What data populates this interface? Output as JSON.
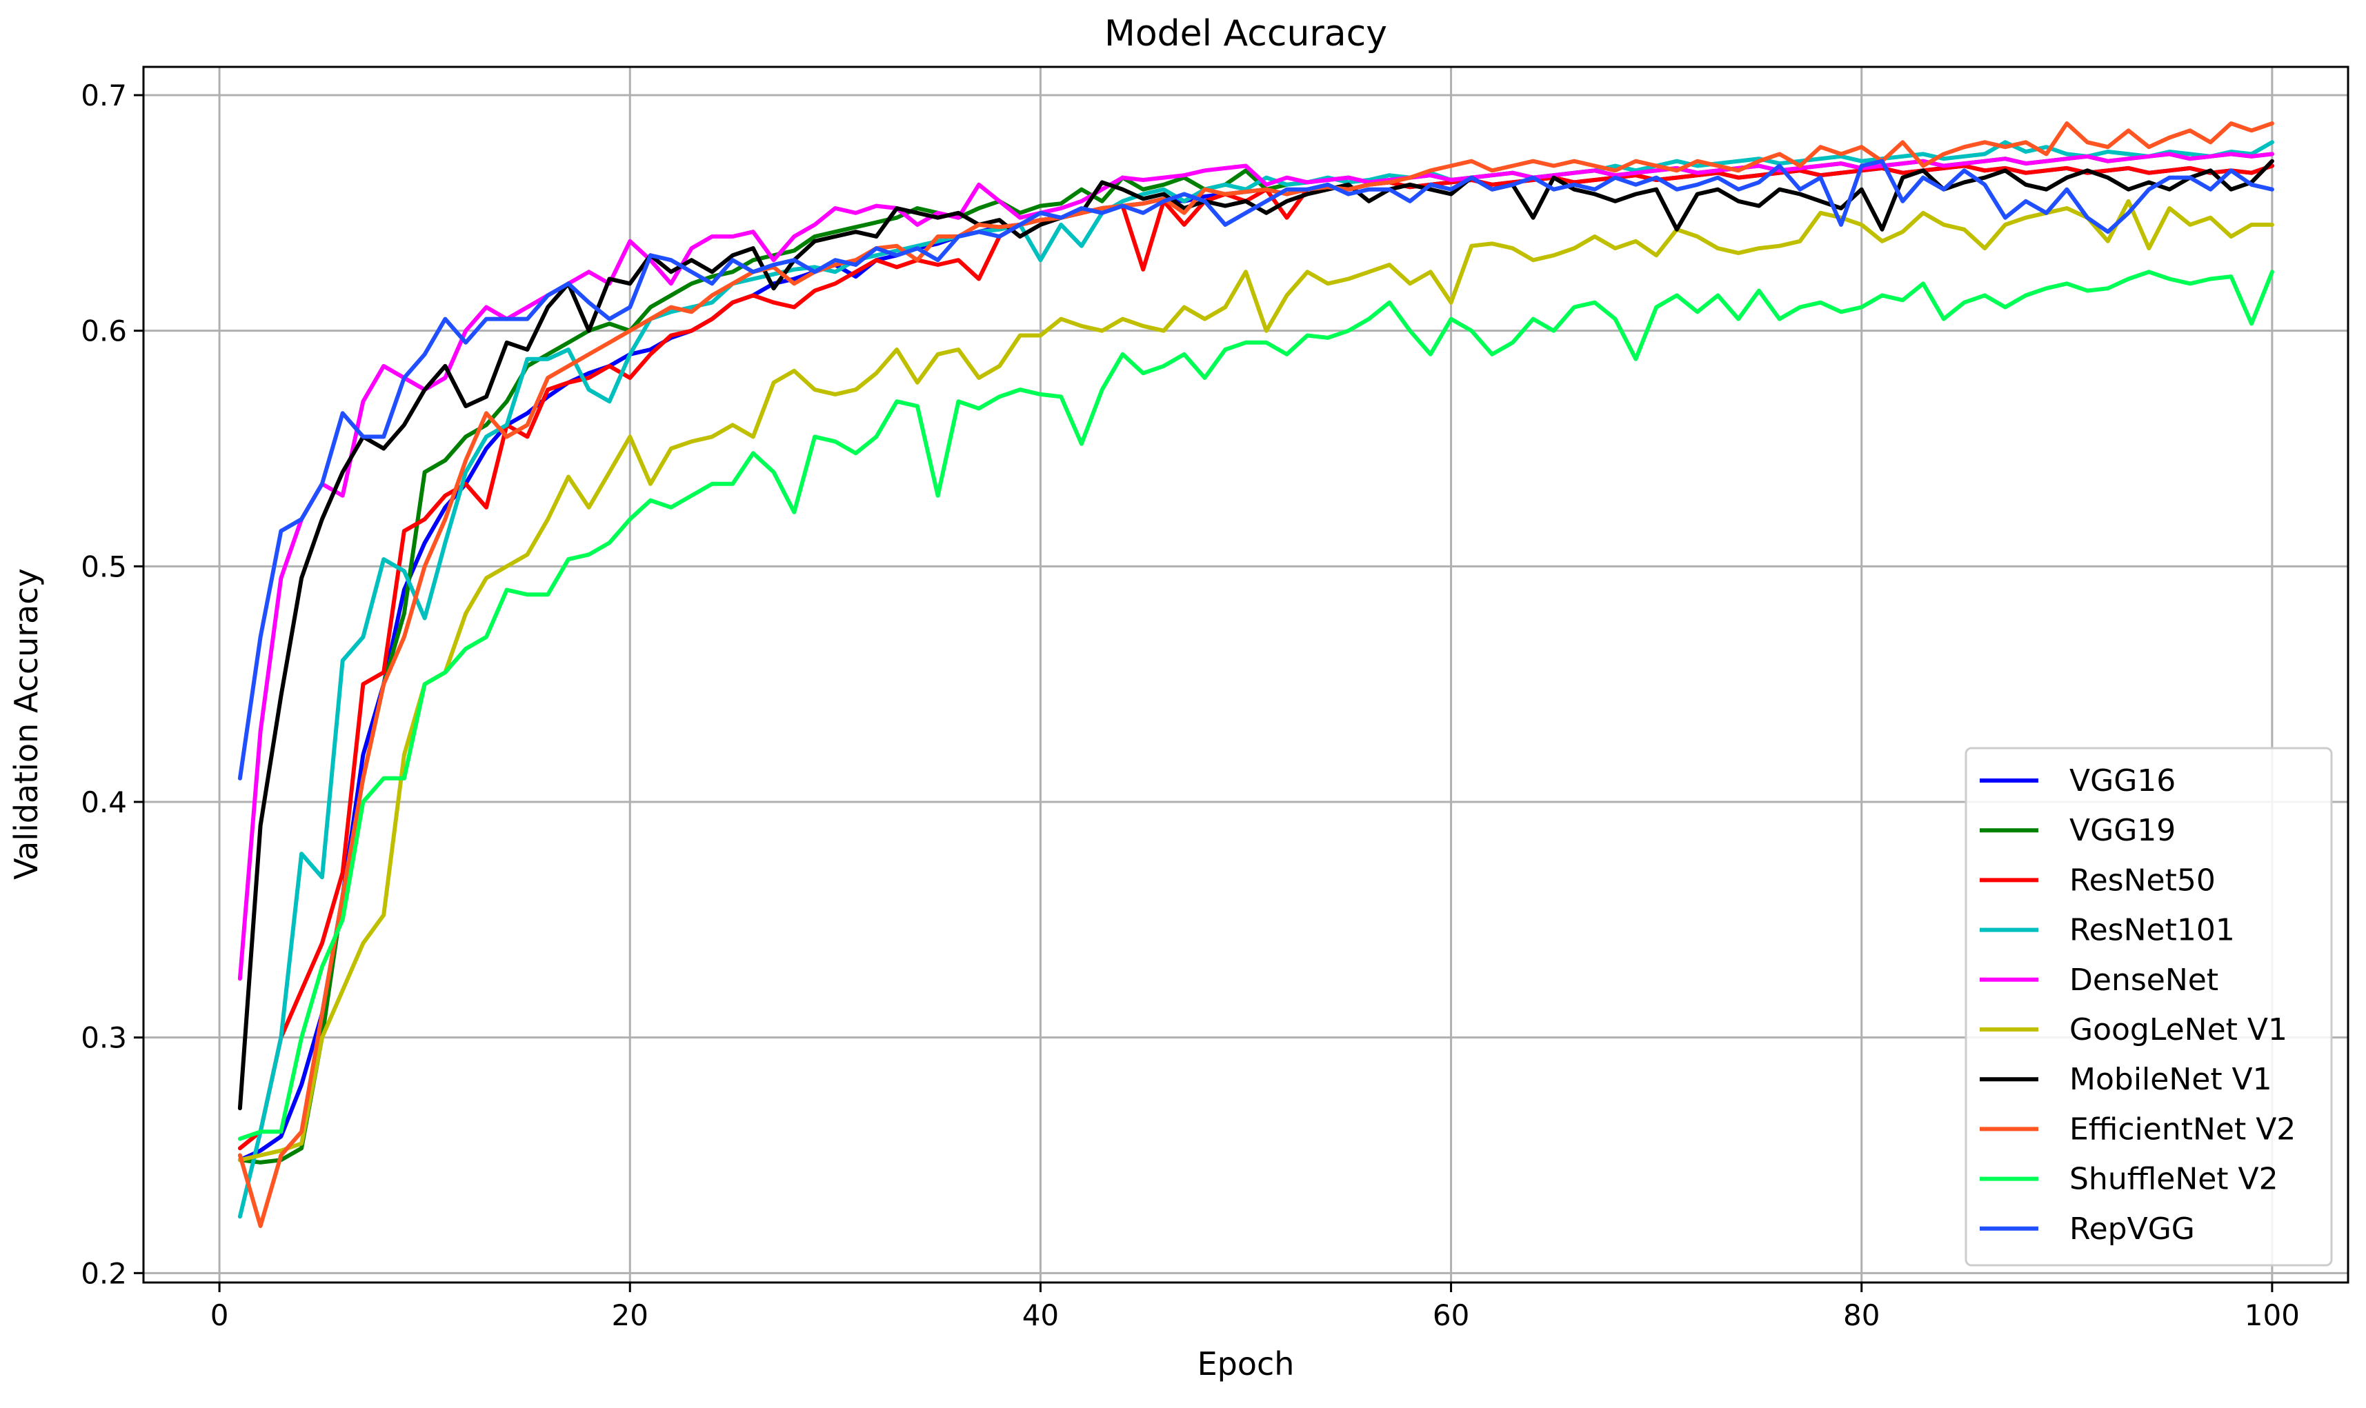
{
  "chart_data": {
    "type": "line",
    "title": "Model Accuracy",
    "xlabel": "Epoch",
    "ylabel": "Validation Accuracy",
    "xlim": [
      -3.7,
      103.7
    ],
    "ylim": [
      0.196,
      0.712
    ],
    "xticks": [
      0,
      20,
      40,
      60,
      80,
      100
    ],
    "yticks": [
      0.2,
      0.3,
      0.4,
      0.5,
      0.6,
      0.7
    ],
    "xtick_labels": [
      "0",
      "20",
      "40",
      "60",
      "80",
      "100"
    ],
    "ytick_labels": [
      "0.2",
      "0.3",
      "0.4",
      "0.5",
      "0.6",
      "0.7"
    ],
    "grid": true,
    "legend_position": "lower-right",
    "x_start": 1,
    "series": [
      {
        "name": "VGG16",
        "color": "#0000ff",
        "values": [
          0.248,
          0.252,
          0.258,
          0.28,
          0.31,
          0.36,
          0.42,
          0.45,
          0.49,
          0.51,
          0.525,
          0.535,
          0.55,
          0.56,
          0.565,
          0.572,
          0.578,
          0.582,
          0.585,
          0.59,
          0.592,
          0.597,
          0.6,
          0.605,
          0.612,
          0.615,
          0.62,
          0.622,
          0.625,
          0.628,
          0.623,
          0.63,
          0.632,
          0.635,
          0.637,
          0.64,
          0.642,
          0.644,
          0.645,
          0.647,
          0.648,
          0.65,
          0.652,
          0.653,
          0.654,
          0.656,
          0.655,
          0.657,
          0.658,
          0.659,
          0.66,
          0.658,
          0.66,
          0.661,
          0.66,
          0.662,
          0.663,
          0.661,
          0.662,
          0.663,
          0.664,
          0.662,
          0.663,
          0.664,
          0.665,
          0.663,
          0.664,
          0.665,
          0.666,
          0.664,
          0.665,
          0.666,
          0.667,
          0.665,
          0.666,
          0.667,
          0.668,
          0.666,
          0.667,
          0.668,
          0.669,
          0.667,
          0.668,
          0.669,
          0.67,
          0.668,
          0.669,
          0.667,
          0.668,
          0.669,
          0.667,
          0.668,
          0.669,
          0.667,
          0.668,
          0.669,
          0.667,
          0.668,
          0.667,
          0.67
        ]
      },
      {
        "name": "VGG19",
        "color": "#008000",
        "values": [
          0.248,
          0.247,
          0.248,
          0.253,
          0.3,
          0.36,
          0.41,
          0.45,
          0.48,
          0.54,
          0.545,
          0.555,
          0.56,
          0.57,
          0.585,
          0.59,
          0.595,
          0.6,
          0.603,
          0.6,
          0.61,
          0.615,
          0.62,
          0.623,
          0.625,
          0.63,
          0.632,
          0.634,
          0.64,
          0.642,
          0.644,
          0.646,
          0.648,
          0.652,
          0.65,
          0.648,
          0.652,
          0.655,
          0.65,
          0.653,
          0.654,
          0.66,
          0.655,
          0.665,
          0.66,
          0.662,
          0.665,
          0.66,
          0.662,
          0.668,
          0.66,
          0.662,
          0.663,
          0.664,
          0.665,
          0.663,
          0.664,
          0.665,
          0.666,
          0.664,
          0.665,
          0.666,
          0.667,
          0.665,
          0.666,
          0.667,
          0.668,
          0.666,
          0.667,
          0.668,
          0.669,
          0.667,
          0.668,
          0.669,
          0.67,
          0.668,
          0.669,
          0.67,
          0.671,
          0.669,
          0.67,
          0.671,
          0.672,
          0.67,
          0.671,
          0.672,
          0.673,
          0.671,
          0.672,
          0.673,
          0.674,
          0.672,
          0.673,
          0.674,
          0.675,
          0.673,
          0.674,
          0.675,
          0.674,
          0.675
        ]
      },
      {
        "name": "ResNet50",
        "color": "#ff0000",
        "values": [
          0.253,
          0.26,
          0.3,
          0.32,
          0.34,
          0.37,
          0.45,
          0.455,
          0.515,
          0.52,
          0.53,
          0.535,
          0.525,
          0.56,
          0.555,
          0.575,
          0.578,
          0.58,
          0.585,
          0.58,
          0.59,
          0.598,
          0.6,
          0.605,
          0.612,
          0.615,
          0.612,
          0.61,
          0.617,
          0.62,
          0.625,
          0.63,
          0.627,
          0.63,
          0.628,
          0.63,
          0.622,
          0.64,
          0.645,
          0.647,
          0.648,
          0.65,
          0.652,
          0.653,
          0.626,
          0.655,
          0.645,
          0.655,
          0.658,
          0.655,
          0.66,
          0.648,
          0.66,
          0.661,
          0.66,
          0.662,
          0.663,
          0.661,
          0.662,
          0.663,
          0.664,
          0.662,
          0.663,
          0.664,
          0.665,
          0.663,
          0.664,
          0.665,
          0.666,
          0.664,
          0.665,
          0.666,
          0.667,
          0.665,
          0.666,
          0.667,
          0.668,
          0.666,
          0.667,
          0.668,
          0.669,
          0.667,
          0.668,
          0.669,
          0.67,
          0.668,
          0.669,
          0.667,
          0.668,
          0.669,
          0.667,
          0.668,
          0.669,
          0.667,
          0.668,
          0.669,
          0.667,
          0.668,
          0.667,
          0.67
        ]
      },
      {
        "name": "ResNet101",
        "color": "#00bfbf",
        "values": [
          0.224,
          0.26,
          0.3,
          0.378,
          0.368,
          0.46,
          0.47,
          0.503,
          0.498,
          0.478,
          0.51,
          0.54,
          0.555,
          0.56,
          0.588,
          0.588,
          0.592,
          0.575,
          0.57,
          0.59,
          0.605,
          0.608,
          0.61,
          0.612,
          0.62,
          0.622,
          0.624,
          0.626,
          0.627,
          0.625,
          0.63,
          0.632,
          0.634,
          0.636,
          0.638,
          0.64,
          0.642,
          0.643,
          0.645,
          0.63,
          0.645,
          0.636,
          0.65,
          0.655,
          0.658,
          0.66,
          0.655,
          0.66,
          0.662,
          0.66,
          0.665,
          0.662,
          0.663,
          0.665,
          0.663,
          0.664,
          0.666,
          0.665,
          0.667,
          0.664,
          0.665,
          0.666,
          0.667,
          0.665,
          0.666,
          0.667,
          0.668,
          0.67,
          0.668,
          0.67,
          0.672,
          0.67,
          0.671,
          0.672,
          0.673,
          0.671,
          0.672,
          0.673,
          0.674,
          0.672,
          0.673,
          0.674,
          0.675,
          0.673,
          0.674,
          0.675,
          0.68,
          0.676,
          0.678,
          0.675,
          0.674,
          0.676,
          0.675,
          0.674,
          0.676,
          0.675,
          0.674,
          0.676,
          0.675,
          0.68
        ]
      },
      {
        "name": "DenseNet",
        "color": "#ff00ff",
        "values": [
          0.325,
          0.43,
          0.495,
          0.52,
          0.535,
          0.53,
          0.57,
          0.585,
          0.58,
          0.575,
          0.58,
          0.6,
          0.61,
          0.605,
          0.61,
          0.615,
          0.62,
          0.625,
          0.62,
          0.638,
          0.63,
          0.62,
          0.635,
          0.64,
          0.64,
          0.642,
          0.63,
          0.64,
          0.645,
          0.652,
          0.65,
          0.653,
          0.652,
          0.645,
          0.65,
          0.648,
          0.662,
          0.655,
          0.648,
          0.65,
          0.652,
          0.655,
          0.66,
          0.665,
          0.664,
          0.665,
          0.666,
          0.668,
          0.669,
          0.67,
          0.662,
          0.665,
          0.663,
          0.664,
          0.665,
          0.663,
          0.664,
          0.665,
          0.666,
          0.664,
          0.665,
          0.666,
          0.667,
          0.665,
          0.666,
          0.667,
          0.668,
          0.666,
          0.667,
          0.668,
          0.669,
          0.667,
          0.668,
          0.669,
          0.67,
          0.668,
          0.669,
          0.67,
          0.671,
          0.669,
          0.67,
          0.671,
          0.672,
          0.67,
          0.671,
          0.672,
          0.673,
          0.671,
          0.672,
          0.673,
          0.674,
          0.672,
          0.673,
          0.674,
          0.675,
          0.673,
          0.674,
          0.675,
          0.674,
          0.675
        ]
      },
      {
        "name": "GoogLeNet V1",
        "color": "#bfbf00",
        "values": [
          0.248,
          0.25,
          0.252,
          0.255,
          0.3,
          0.32,
          0.34,
          0.352,
          0.42,
          0.45,
          0.455,
          0.48,
          0.495,
          0.5,
          0.505,
          0.52,
          0.538,
          0.525,
          0.54,
          0.555,
          0.535,
          0.55,
          0.553,
          0.555,
          0.56,
          0.555,
          0.578,
          0.583,
          0.575,
          0.573,
          0.575,
          0.582,
          0.592,
          0.578,
          0.59,
          0.592,
          0.58,
          0.585,
          0.598,
          0.598,
          0.605,
          0.602,
          0.6,
          0.605,
          0.602,
          0.6,
          0.61,
          0.605,
          0.61,
          0.625,
          0.6,
          0.615,
          0.625,
          0.62,
          0.622,
          0.625,
          0.628,
          0.62,
          0.625,
          0.612,
          0.636,
          0.637,
          0.635,
          0.63,
          0.632,
          0.635,
          0.64,
          0.635,
          0.638,
          0.632,
          0.643,
          0.64,
          0.635,
          0.633,
          0.635,
          0.636,
          0.638,
          0.65,
          0.648,
          0.645,
          0.638,
          0.642,
          0.65,
          0.645,
          0.643,
          0.635,
          0.645,
          0.648,
          0.65,
          0.652,
          0.648,
          0.638,
          0.655,
          0.635,
          0.652,
          0.645,
          0.648,
          0.64,
          0.645,
          0.645
        ]
      },
      {
        "name": "MobileNet V1",
        "color": "#000000",
        "values": [
          0.27,
          0.39,
          0.445,
          0.495,
          0.52,
          0.54,
          0.555,
          0.55,
          0.56,
          0.575,
          0.585,
          0.568,
          0.572,
          0.595,
          0.592,
          0.61,
          0.62,
          0.6,
          0.622,
          0.62,
          0.632,
          0.625,
          0.63,
          0.625,
          0.632,
          0.635,
          0.618,
          0.63,
          0.638,
          0.64,
          0.642,
          0.64,
          0.652,
          0.65,
          0.648,
          0.65,
          0.645,
          0.647,
          0.64,
          0.645,
          0.648,
          0.65,
          0.663,
          0.66,
          0.656,
          0.658,
          0.652,
          0.655,
          0.653,
          0.655,
          0.65,
          0.655,
          0.658,
          0.66,
          0.662,
          0.655,
          0.66,
          0.662,
          0.66,
          0.658,
          0.665,
          0.66,
          0.662,
          0.648,
          0.665,
          0.66,
          0.658,
          0.655,
          0.658,
          0.66,
          0.643,
          0.658,
          0.66,
          0.655,
          0.653,
          0.66,
          0.658,
          0.655,
          0.652,
          0.66,
          0.643,
          0.665,
          0.668,
          0.66,
          0.663,
          0.665,
          0.668,
          0.662,
          0.66,
          0.665,
          0.668,
          0.665,
          0.66,
          0.663,
          0.66,
          0.665,
          0.668,
          0.66,
          0.663,
          0.672
        ]
      },
      {
        "name": "EfficientNet V2",
        "color": "#ff5522",
        "values": [
          0.25,
          0.22,
          0.25,
          0.26,
          0.31,
          0.36,
          0.41,
          0.45,
          0.47,
          0.5,
          0.52,
          0.545,
          0.565,
          0.555,
          0.56,
          0.58,
          0.585,
          0.59,
          0.595,
          0.6,
          0.605,
          0.61,
          0.608,
          0.615,
          0.62,
          0.625,
          0.627,
          0.62,
          0.625,
          0.628,
          0.63,
          0.635,
          0.636,
          0.63,
          0.64,
          0.64,
          0.645,
          0.644,
          0.645,
          0.647,
          0.648,
          0.65,
          0.652,
          0.653,
          0.654,
          0.656,
          0.65,
          0.66,
          0.658,
          0.659,
          0.66,
          0.658,
          0.66,
          0.661,
          0.66,
          0.662,
          0.663,
          0.665,
          0.668,
          0.67,
          0.672,
          0.668,
          0.67,
          0.672,
          0.67,
          0.672,
          0.67,
          0.668,
          0.672,
          0.67,
          0.668,
          0.672,
          0.67,
          0.668,
          0.672,
          0.675,
          0.67,
          0.678,
          0.675,
          0.678,
          0.672,
          0.68,
          0.67,
          0.675,
          0.678,
          0.68,
          0.678,
          0.68,
          0.675,
          0.688,
          0.68,
          0.678,
          0.685,
          0.678,
          0.682,
          0.685,
          0.68,
          0.688,
          0.685,
          0.688
        ]
      },
      {
        "name": "ShuffleNet V2",
        "color": "#00ff55",
        "values": [
          0.257,
          0.26,
          0.26,
          0.3,
          0.33,
          0.35,
          0.4,
          0.41,
          0.41,
          0.45,
          0.455,
          0.465,
          0.47,
          0.49,
          0.488,
          0.488,
          0.503,
          0.505,
          0.51,
          0.52,
          0.528,
          0.525,
          0.53,
          0.535,
          0.535,
          0.548,
          0.54,
          0.523,
          0.555,
          0.553,
          0.548,
          0.555,
          0.57,
          0.568,
          0.53,
          0.57,
          0.567,
          0.572,
          0.575,
          0.573,
          0.572,
          0.552,
          0.575,
          0.59,
          0.582,
          0.585,
          0.59,
          0.58,
          0.592,
          0.595,
          0.595,
          0.59,
          0.598,
          0.597,
          0.6,
          0.605,
          0.612,
          0.6,
          0.59,
          0.605,
          0.6,
          0.59,
          0.595,
          0.605,
          0.6,
          0.61,
          0.612,
          0.605,
          0.588,
          0.61,
          0.615,
          0.608,
          0.615,
          0.605,
          0.617,
          0.605,
          0.61,
          0.612,
          0.608,
          0.61,
          0.615,
          0.613,
          0.62,
          0.605,
          0.612,
          0.615,
          0.61,
          0.615,
          0.618,
          0.62,
          0.617,
          0.618,
          0.622,
          0.625,
          0.622,
          0.62,
          0.622,
          0.623,
          0.603,
          0.625
        ]
      },
      {
        "name": "RepVGG",
        "color": "#1f4fff",
        "values": [
          0.41,
          0.47,
          0.515,
          0.52,
          0.535,
          0.565,
          0.555,
          0.555,
          0.58,
          0.59,
          0.605,
          0.595,
          0.605,
          0.605,
          0.605,
          0.615,
          0.62,
          0.612,
          0.605,
          0.61,
          0.632,
          0.63,
          0.625,
          0.62,
          0.63,
          0.625,
          0.628,
          0.63,
          0.625,
          0.63,
          0.628,
          0.635,
          0.632,
          0.635,
          0.63,
          0.64,
          0.642,
          0.64,
          0.645,
          0.65,
          0.648,
          0.652,
          0.65,
          0.653,
          0.65,
          0.655,
          0.658,
          0.655,
          0.645,
          0.65,
          0.655,
          0.66,
          0.66,
          0.662,
          0.658,
          0.66,
          0.66,
          0.655,
          0.662,
          0.66,
          0.665,
          0.66,
          0.662,
          0.665,
          0.66,
          0.662,
          0.66,
          0.665,
          0.662,
          0.665,
          0.66,
          0.662,
          0.665,
          0.66,
          0.663,
          0.67,
          0.66,
          0.665,
          0.645,
          0.67,
          0.672,
          0.655,
          0.665,
          0.66,
          0.668,
          0.662,
          0.648,
          0.655,
          0.65,
          0.66,
          0.648,
          0.642,
          0.65,
          0.66,
          0.665,
          0.665,
          0.66,
          0.668,
          0.662,
          0.66
        ]
      }
    ]
  }
}
